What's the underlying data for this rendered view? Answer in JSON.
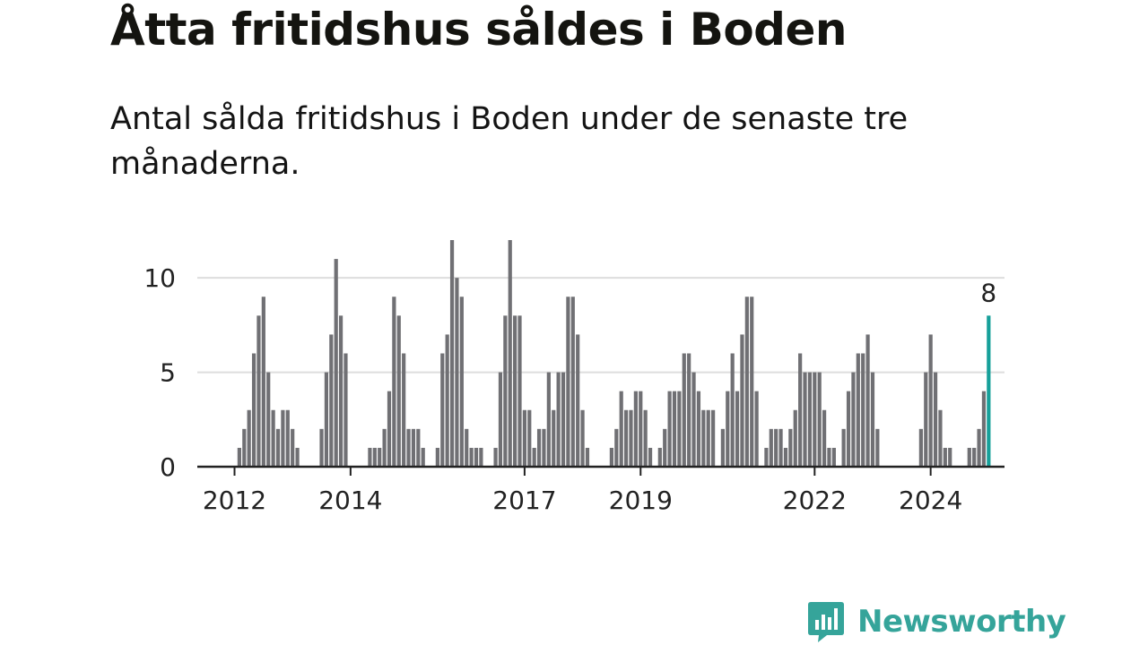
{
  "header": {
    "title": "Åtta fritidshus såldes i Boden",
    "subtitle": "Antal sålda fritidshus i Boden under de senaste tre månaderna."
  },
  "brand": {
    "name": "Newsworthy",
    "color": "#35a49a",
    "icon": "newsworthy-logo-icon"
  },
  "colors": {
    "bar": "#707074",
    "highlight": "#16a09a",
    "grid": "#dddddd",
    "axis": "#222222"
  },
  "chart_data": {
    "type": "bar",
    "title": "Åtta fritidshus såldes i Boden",
    "xlabel": "",
    "ylabel": "",
    "ylim": [
      0,
      12
    ],
    "yticks": [
      0,
      5,
      10
    ],
    "start": "2012-01",
    "xtick_labels": [
      "2012",
      "2014",
      "2017",
      "2019",
      "2022",
      "2024"
    ],
    "highlight_label": "8",
    "values": [
      0,
      1,
      2,
      3,
      6,
      8,
      9,
      5,
      3,
      2,
      3,
      3,
      2,
      1,
      0,
      0,
      0,
      0,
      2,
      5,
      7,
      11,
      8,
      6,
      0,
      0,
      0,
      0,
      1,
      1,
      1,
      2,
      4,
      9,
      8,
      6,
      2,
      2,
      2,
      1,
      0,
      0,
      1,
      6,
      7,
      12,
      10,
      9,
      2,
      1,
      1,
      1,
      0,
      0,
      1,
      5,
      8,
      12,
      8,
      8,
      3,
      3,
      1,
      2,
      2,
      5,
      3,
      5,
      5,
      9,
      9,
      7,
      3,
      1,
      0,
      0,
      0,
      0,
      1,
      2,
      4,
      3,
      3,
      4,
      4,
      3,
      1,
      0,
      1,
      2,
      4,
      4,
      4,
      6,
      6,
      5,
      4,
      3,
      3,
      3,
      0,
      2,
      4,
      6,
      4,
      7,
      9,
      9,
      4,
      0,
      1,
      2,
      2,
      2,
      1,
      2,
      3,
      6,
      5,
      5,
      5,
      5,
      3,
      1,
      1,
      0,
      2,
      4,
      5,
      6,
      6,
      7,
      5,
      2,
      0,
      0,
      0,
      0,
      0,
      0,
      0,
      0,
      2,
      5,
      7,
      5,
      3,
      1,
      1,
      0,
      0,
      0,
      1,
      1,
      2,
      4,
      8
    ]
  }
}
